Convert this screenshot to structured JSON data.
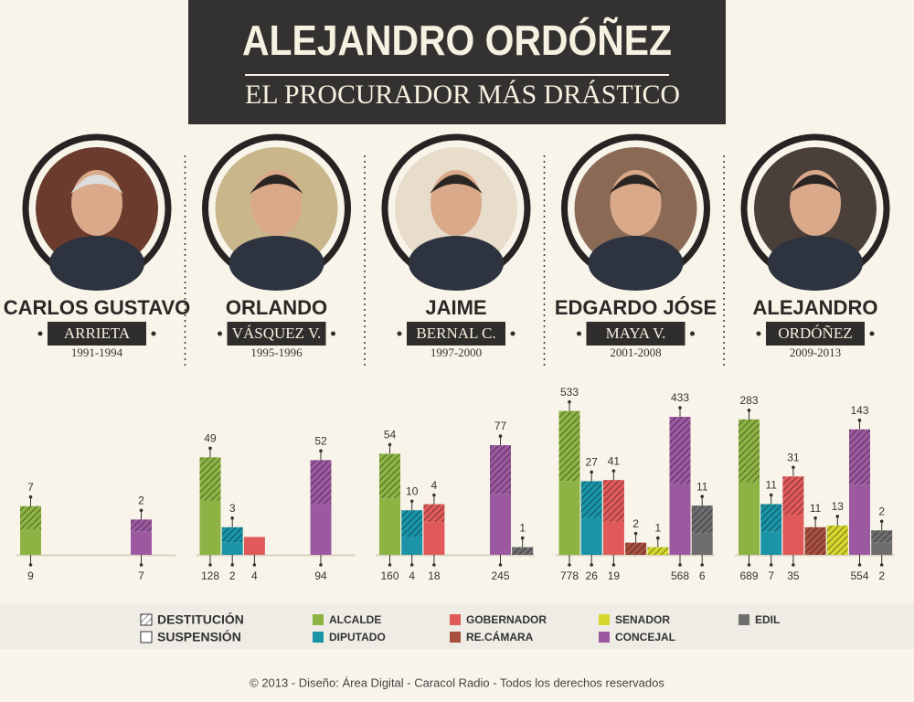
{
  "header": {
    "title": "ALEJANDRO ORDÓÑEZ",
    "subtitle": "EL PROCURADOR MÁS DRÁSTICO"
  },
  "chart_data": [
    {
      "type": "bar",
      "stacked": true,
      "title": "CARLOS GUSTAVO",
      "subtitle": "ARRIETA",
      "period": "1991-1994",
      "categories": [
        "ALCALDE",
        "DIPUTADO",
        "GOBERNADOR",
        "RE.CÁMARA",
        "SENADOR",
        "CONCEJAL",
        "EDIL"
      ],
      "colors": [
        "#8db344",
        "#1a94a6",
        "#e05a5a",
        "#a8503f",
        "#d5d62e",
        "#9b5aa0",
        "#6e6e6e"
      ],
      "series": [
        {
          "name": "SUSPENSIÓN",
          "values": [
            9,
            null,
            null,
            null,
            null,
            7,
            null
          ]
        },
        {
          "name": "DESTITUCIÓN",
          "values": [
            7,
            null,
            null,
            null,
            null,
            2,
            null
          ]
        }
      ]
    },
    {
      "type": "bar",
      "stacked": true,
      "title": "ORLANDO",
      "subtitle": "VÁSQUEZ V.",
      "period": "1995-1996",
      "categories": [
        "ALCALDE",
        "DIPUTADO",
        "GOBERNADOR",
        "RE.CÁMARA",
        "SENADOR",
        "CONCEJAL",
        "EDIL"
      ],
      "colors": [
        "#8db344",
        "#1a94a6",
        "#e05a5a",
        "#a8503f",
        "#d5d62e",
        "#9b5aa0",
        "#6e6e6e"
      ],
      "series": [
        {
          "name": "SUSPENSIÓN",
          "values": [
            128,
            2,
            4,
            null,
            null,
            94,
            null
          ]
        },
        {
          "name": "DESTITUCIÓN",
          "values": [
            49,
            3,
            null,
            null,
            null,
            52,
            null
          ]
        }
      ]
    },
    {
      "type": "bar",
      "stacked": true,
      "title": "JAIME",
      "subtitle": "BERNAL C.",
      "period": "1997-2000",
      "categories": [
        "ALCALDE",
        "DIPUTADO",
        "GOBERNADOR",
        "RE.CÁMARA",
        "SENADOR",
        "CONCEJAL",
        "EDIL"
      ],
      "colors": [
        "#8db344",
        "#1a94a6",
        "#e05a5a",
        "#a8503f",
        "#d5d62e",
        "#9b5aa0",
        "#6e6e6e"
      ],
      "series": [
        {
          "name": "SUSPENSIÓN",
          "values": [
            160,
            4,
            18,
            null,
            null,
            245,
            null
          ]
        },
        {
          "name": "DESTITUCIÓN",
          "values": [
            54,
            10,
            4,
            null,
            null,
            77,
            1
          ]
        }
      ]
    },
    {
      "type": "bar",
      "stacked": true,
      "title": "EDGARDO JÓSE",
      "subtitle": "MAYA V.",
      "period": "2001-2008",
      "categories": [
        "ALCALDE",
        "DIPUTADO",
        "GOBERNADOR",
        "RE.CÁMARA",
        "SENADOR",
        "CONCEJAL",
        "EDIL"
      ],
      "colors": [
        "#8db344",
        "#1a94a6",
        "#e05a5a",
        "#a8503f",
        "#d5d62e",
        "#9b5aa0",
        "#6e6e6e"
      ],
      "series": [
        {
          "name": "SUSPENSIÓN",
          "values": [
            778,
            26,
            19,
            null,
            null,
            568,
            6
          ]
        },
        {
          "name": "DESTITUCIÓN",
          "values": [
            533,
            27,
            41,
            2,
            1,
            433,
            11
          ]
        }
      ]
    },
    {
      "type": "bar",
      "stacked": true,
      "title": "ALEJANDRO",
      "subtitle": "ORDÓÑEZ",
      "period": "2009-2013",
      "categories": [
        "ALCALDE",
        "DIPUTADO",
        "GOBERNADOR",
        "RE.CÁMARA",
        "SENADOR",
        "CONCEJAL",
        "EDIL"
      ],
      "colors": [
        "#8db344",
        "#1a94a6",
        "#e05a5a",
        "#a8503f",
        "#d5d62e",
        "#9b5aa0",
        "#6e6e6e"
      ],
      "series": [
        {
          "name": "SUSPENSIÓN",
          "values": [
            689,
            7,
            35,
            null,
            null,
            554,
            2
          ]
        },
        {
          "name": "DESTITUCIÓN",
          "values": [
            283,
            11,
            31,
            11,
            13,
            143,
            2
          ]
        }
      ]
    }
  ],
  "footer": "© 2013 - Diseño: Área Digital - Caracol Radio - Todos los derechos reservados"
}
